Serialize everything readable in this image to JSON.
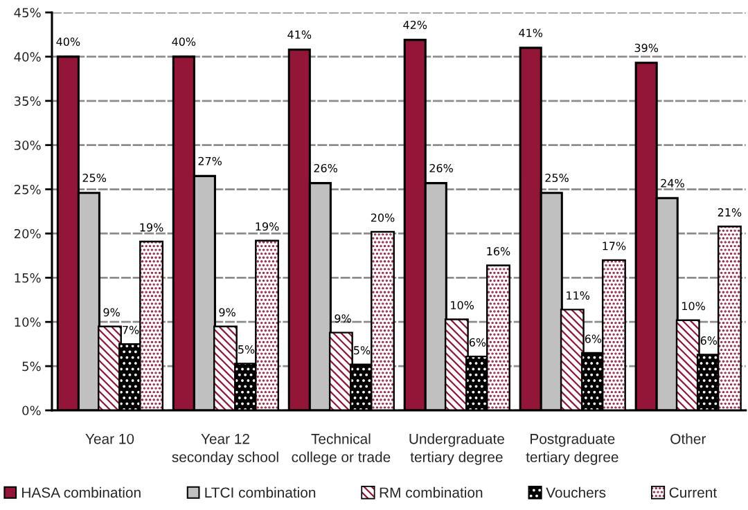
{
  "chart_data": {
    "type": "bar",
    "categories": [
      "Year 10",
      "Year 12\nseconday school",
      "Technical\ncollege or trade",
      "Undergraduate\ntertiary degree",
      "Postgraduate\ntertiary degree",
      "Other"
    ],
    "ylim": [
      0,
      45
    ],
    "yticks": [
      {
        "value": 0,
        "label": "0%"
      },
      {
        "value": 5,
        "label": "5%"
      },
      {
        "value": 10,
        "label": "10%"
      },
      {
        "value": 15,
        "label": "15%"
      },
      {
        "value": 20,
        "label": "20%"
      },
      {
        "value": 25,
        "label": "25%"
      },
      {
        "value": 30,
        "label": "30%"
      },
      {
        "value": 35,
        "label": "35%"
      },
      {
        "value": 40,
        "label": "40%"
      },
      {
        "value": 45,
        "label": "45%"
      }
    ],
    "grid": "y",
    "legend": "bottom",
    "series": [
      {
        "name": "HASA combination",
        "color": "#931638",
        "values": [
          40.0,
          40.0,
          40.8,
          41.9,
          41.0,
          39.3
        ],
        "value_labels": [
          "40%",
          "40%",
          "41%",
          "42%",
          "41%",
          "39%"
        ]
      },
      {
        "name": "LTCI combination",
        "color": "#c0c0c0",
        "values": [
          24.6,
          26.5,
          25.7,
          25.7,
          24.6,
          24.0
        ],
        "value_labels": [
          "25%",
          "27%",
          "26%",
          "26%",
          "25%",
          "24%"
        ]
      },
      {
        "name": "RM combination",
        "color": "#931638",
        "values": [
          9.4,
          9.4,
          8.7,
          10.2,
          11.3,
          10.1
        ],
        "value_labels": [
          "9%",
          "9%",
          "9%",
          "10%",
          "11%",
          "10%"
        ]
      },
      {
        "name": "Vouchers",
        "color": "#000000",
        "values": [
          7.4,
          5.2,
          5.1,
          6.0,
          6.4,
          6.2
        ],
        "value_labels": [
          "7%",
          "5%",
          "5%",
          "6%",
          "6%",
          "6%"
        ]
      },
      {
        "name": "Current",
        "color": "#931638",
        "values": [
          19.0,
          19.1,
          20.1,
          16.3,
          16.9,
          20.7
        ],
        "value_labels": [
          "19%",
          "19%",
          "20%",
          "16%",
          "17%",
          "21%"
        ]
      }
    ]
  }
}
